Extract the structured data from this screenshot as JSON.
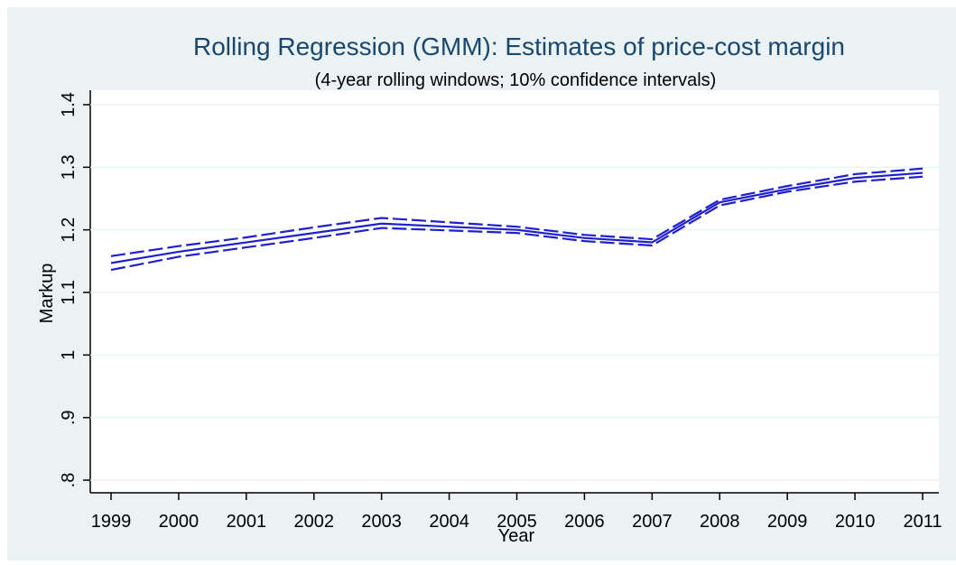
{
  "chart_data": {
    "type": "line",
    "title": "Rolling Regression (GMM): Estimates of price-cost margin",
    "subtitle": "(4-year rolling windows; 10% confidence intervals)",
    "x_label": "Year",
    "y_label": "Markup",
    "x": [
      1999,
      2000,
      2001,
      2002,
      2003,
      2004,
      2005,
      2006,
      2007,
      2008,
      2009,
      2010,
      2011
    ],
    "series": [
      {
        "color": "#1f1fcc",
        "style": "solid",
        "values": [
          1.147,
          1.165,
          1.18,
          1.195,
          1.21,
          1.205,
          1.2,
          1.187,
          1.18,
          1.244,
          1.265,
          1.283,
          1.291
        ]
      },
      {
        "color": "#1f1fcc",
        "style": "dashed",
        "values": [
          1.158,
          1.174,
          1.188,
          1.204,
          1.219,
          1.212,
          1.205,
          1.192,
          1.185,
          1.248,
          1.27,
          1.289,
          1.298
        ]
      },
      {
        "color": "#1f1fcc",
        "style": "dashed",
        "values": [
          1.136,
          1.157,
          1.172,
          1.187,
          1.203,
          1.199,
          1.195,
          1.182,
          1.175,
          1.239,
          1.261,
          1.277,
          1.285
        ]
      }
    ],
    "xlim": [
      1999,
      2011
    ],
    "xticks": [
      1999,
      2000,
      2001,
      2002,
      2003,
      2004,
      2005,
      2006,
      2007,
      2008,
      2009,
      2010,
      2011
    ],
    "ylim": [
      0.8,
      1.4
    ],
    "yticks": [
      {
        "value": 0.8,
        "label": ".8"
      },
      {
        "value": 0.9,
        "label": ".9"
      },
      1,
      1.1,
      1.2,
      1.3,
      1.4
    ],
    "grid": true
  }
}
